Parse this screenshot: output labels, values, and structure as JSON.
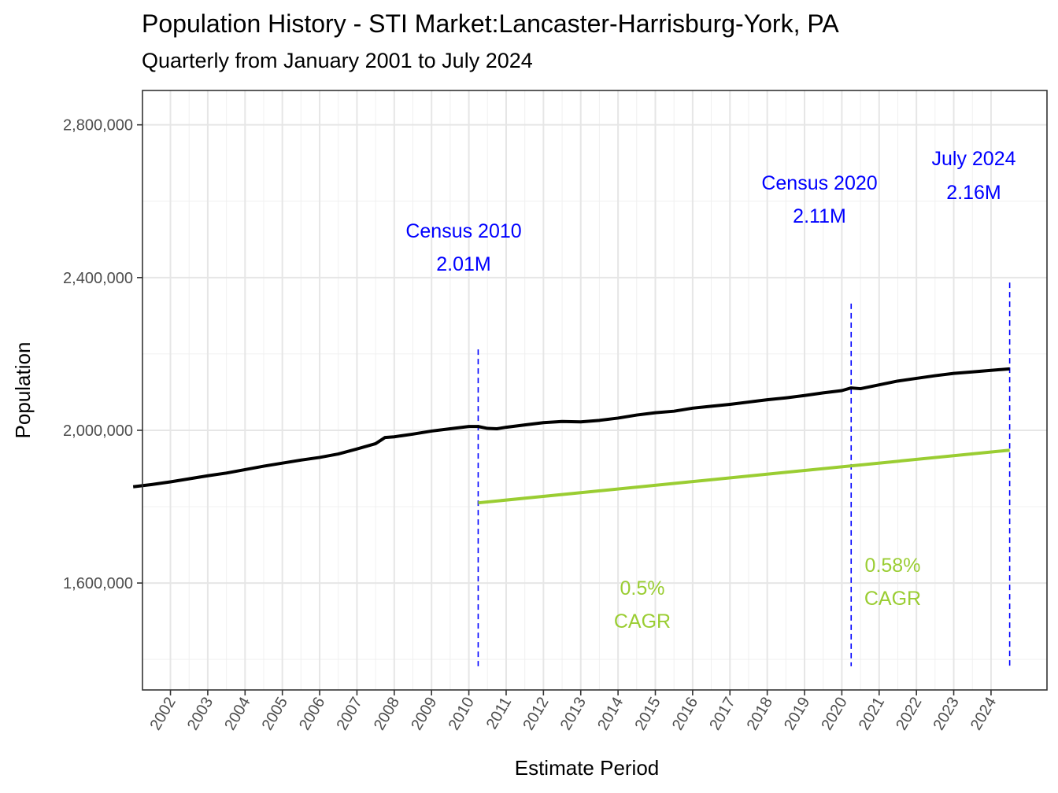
{
  "chart_data": {
    "type": "line",
    "title": "Population History - STI Market:Lancaster-Harrisburg-York, PA",
    "subtitle": "Quarterly from January 2001 to July 2024",
    "xlabel": "Estimate Period",
    "ylabel": "Population",
    "xlim": [
      2001.25,
      2025.5
    ],
    "ylim": [
      1320000,
      2890000
    ],
    "grid": true,
    "y_ticks": [
      1600000,
      2000000,
      2400000,
      2800000
    ],
    "y_tick_labels": [
      "1,600,000",
      "2,000,000",
      "2,400,000",
      "2,800,000"
    ],
    "x_ticks": [
      2002,
      2003,
      2004,
      2005,
      2006,
      2007,
      2008,
      2009,
      2010,
      2011,
      2012,
      2013,
      2014,
      2015,
      2016,
      2017,
      2018,
      2019,
      2020,
      2021,
      2022,
      2023,
      2024
    ],
    "x_tick_labels": [
      "2002",
      "2003",
      "2004",
      "2005",
      "2006",
      "2007",
      "2008",
      "2009",
      "2010",
      "2011",
      "2012",
      "2013",
      "2014",
      "2015",
      "2016",
      "2017",
      "2018",
      "2019",
      "2020",
      "2021",
      "2022",
      "2023",
      "2024"
    ],
    "series": [
      {
        "color": "#000000",
        "x": [
          2001.0,
          2001.5,
          2002.0,
          2002.5,
          2003.0,
          2003.5,
          2004.0,
          2004.5,
          2005.0,
          2005.5,
          2006.0,
          2006.5,
          2007.0,
          2007.5,
          2007.75,
          2008.0,
          2008.5,
          2009.0,
          2009.5,
          2010.0,
          2010.25,
          2010.5,
          2010.75,
          2011.0,
          2011.5,
          2012.0,
          2012.5,
          2013.0,
          2013.5,
          2014.0,
          2014.5,
          2015.0,
          2015.5,
          2016.0,
          2016.5,
          2017.0,
          2017.5,
          2018.0,
          2018.5,
          2019.0,
          2019.5,
          2020.0,
          2020.25,
          2020.5,
          2021.0,
          2021.5,
          2022.0,
          2022.5,
          2023.0,
          2023.5,
          2024.0,
          2024.5
        ],
        "values": [
          1852000,
          1858000,
          1865000,
          1873000,
          1881000,
          1888000,
          1897000,
          1906000,
          1914000,
          1922000,
          1929000,
          1938000,
          1951000,
          1965000,
          1981000,
          1983000,
          1990000,
          1998000,
          2004000,
          2010000,
          2010000,
          2005000,
          2004000,
          2008000,
          2014000,
          2020000,
          2023000,
          2022000,
          2026000,
          2032000,
          2040000,
          2046000,
          2050000,
          2058000,
          2063000,
          2068000,
          2074000,
          2080000,
          2085000,
          2091000,
          2098000,
          2104000,
          2111000,
          2109000,
          2119000,
          2129000,
          2136000,
          2143000,
          2149000,
          2153000,
          2157000,
          2161000
        ]
      },
      {
        "color": "#9acd32",
        "x": [
          2010.25,
          2024.5
        ],
        "values": [
          1810000,
          1948000
        ]
      }
    ],
    "reference_lines": [
      {
        "x": 2010.25,
        "y_from": 1382000,
        "y_to": 2212000,
        "color": "#0000ff"
      },
      {
        "x": 2020.25,
        "y_from": 1382000,
        "y_to": 2332000,
        "color": "#0000ff"
      },
      {
        "x": 2024.5,
        "y_from": 1382000,
        "y_to": 2387000,
        "color": "#0000ff"
      }
    ],
    "annotations": [
      {
        "lines": [
          "Census 2010",
          "2.01M"
        ],
        "color": "#0000ff"
      },
      {
        "lines": [
          "Census 2020",
          "2.11M"
        ],
        "color": "#0000ff"
      },
      {
        "lines": [
          "July 2024",
          "2.16M"
        ],
        "color": "#0000ff"
      },
      {
        "lines": [
          "0.5%",
          "CAGR"
        ],
        "color": "#9acd32"
      },
      {
        "lines": [
          "0.58%",
          "CAGR"
        ],
        "color": "#9acd32"
      }
    ]
  }
}
